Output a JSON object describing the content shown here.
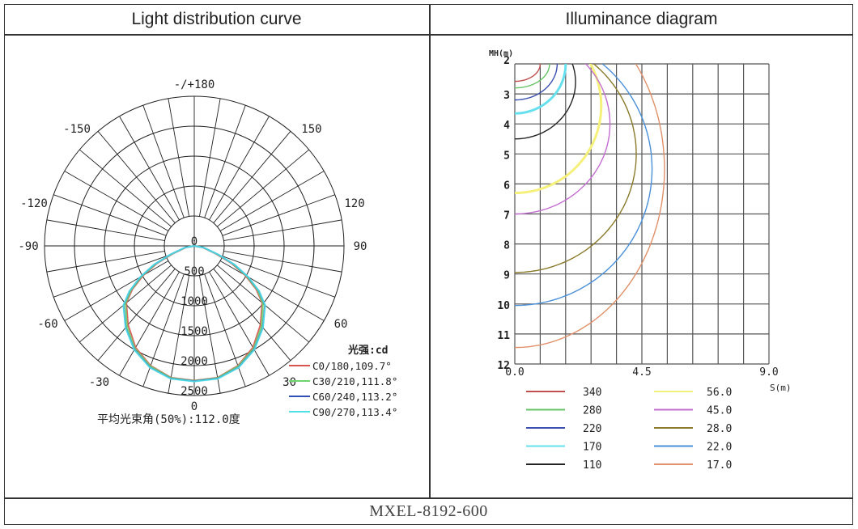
{
  "headers": {
    "left": "Light distribution curve",
    "right": "Illuminance diagram"
  },
  "footer": {
    "model": "MXEL-8192-600"
  },
  "chart_data": [
    {
      "type": "polar",
      "title": "Light distribution curve",
      "unit_label": "光强:cd",
      "angle_labels": [
        "-/+180",
        "150",
        "120",
        "90",
        "60",
        "30",
        "0",
        "-30",
        "-60",
        "-90",
        "-120",
        "-150"
      ],
      "radial_ticks": [
        "0",
        "500",
        "1000",
        "1500",
        "2000",
        "2500"
      ],
      "rmax": 2500,
      "angles_deg": [
        0,
        10,
        20,
        30,
        40,
        50,
        55,
        60,
        65,
        70,
        80,
        90
      ],
      "series": [
        {
          "name": "C0/180,109.7°",
          "color": "#d9534f",
          "values": [
            2250,
            2235,
            2130,
            1960,
            1720,
            1480,
            1260,
            980,
            680,
            380,
            140,
            0
          ]
        },
        {
          "name": "C30/210,111.8°",
          "color": "#6fd46f",
          "values": [
            2255,
            2240,
            2140,
            1980,
            1750,
            1500,
            1290,
            1010,
            710,
            410,
            150,
            0
          ]
        },
        {
          "name": "C60/240,113.2°",
          "color": "#2f4fb5",
          "values": [
            2260,
            2250,
            2160,
            2000,
            1780,
            1540,
            1320,
            1040,
            740,
            430,
            160,
            0
          ]
        },
        {
          "name": "C90/270,113.4°",
          "color": "#4fe0e8",
          "values": [
            2265,
            2255,
            2165,
            2005,
            1785,
            1545,
            1325,
            1045,
            745,
            435,
            160,
            0
          ]
        }
      ],
      "beam_angle_text": "平均光束角(50%):112.0度"
    },
    {
      "type": "contour",
      "title": "Illuminance diagram",
      "ylabel": "MH(m)",
      "xlabel": "S(m)",
      "xlim": [
        0,
        9
      ],
      "ylim": [
        2,
        12
      ],
      "x_tick_labels": [
        "0.0",
        "4.5",
        "9.0"
      ],
      "y_tick_labels": [
        "2",
        "3",
        "4",
        "5",
        "6",
        "7",
        "8",
        "9",
        "10",
        "11",
        "12"
      ],
      "series": [
        {
          "label": "340",
          "color": "#c0504d",
          "center_mh": 2.0,
          "max_s": 0.9,
          "half_depth": 0.58
        },
        {
          "label": "280",
          "color": "#66c466",
          "center_mh": 2.0,
          "max_s": 1.23,
          "half_depth": 0.8
        },
        {
          "label": "220",
          "color": "#3b4fb0",
          "center_mh": 2.0,
          "max_s": 1.5,
          "half_depth": 1.2
        },
        {
          "label": "170",
          "color": "#66e0ee",
          "center_mh": 2.0,
          "max_s": 1.8,
          "half_depth": 1.65
        },
        {
          "label": "110",
          "color": "#222222",
          "center_mh": 2.6,
          "max_s": 2.15,
          "half_depth": 1.9
        },
        {
          "label": "56.0",
          "color": "#f5f07a",
          "center_mh": 3.4,
          "max_s": 3.06,
          "half_depth": 2.9
        },
        {
          "label": "45.0",
          "color": "#c36fd0",
          "center_mh": 4.0,
          "max_s": 3.37,
          "half_depth": 3.0
        },
        {
          "label": "28.0",
          "color": "#8a7a2a",
          "center_mh": 5.0,
          "max_s": 4.3,
          "half_depth": 3.95
        },
        {
          "label": "22.0",
          "color": "#4a90d9",
          "center_mh": 5.5,
          "max_s": 4.86,
          "half_depth": 4.55
        },
        {
          "label": "17.0",
          "color": "#e0906a",
          "center_mh": 5.5,
          "max_s": 5.3,
          "half_depth": 5.95
        }
      ]
    }
  ]
}
